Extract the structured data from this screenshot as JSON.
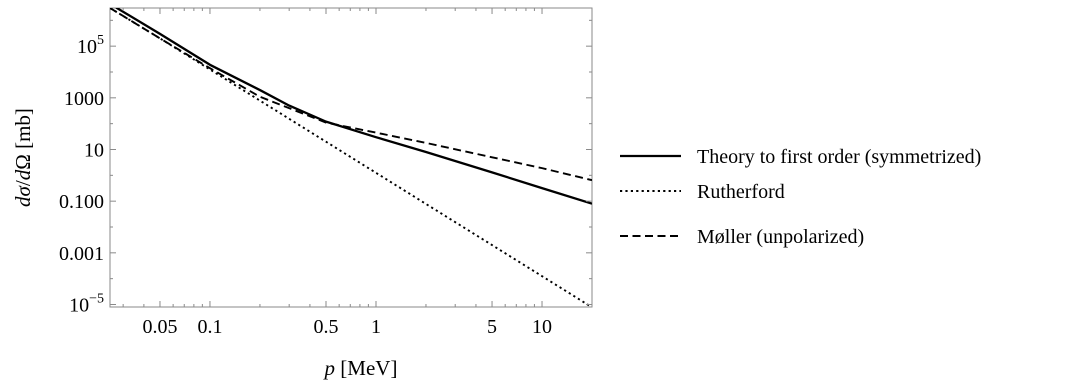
{
  "chart_data": {
    "type": "line",
    "title": "",
    "xlabel": "p [MeV]",
    "ylabel": "dσ/dΩ [mb]",
    "x_scale": "log",
    "y_scale": "log",
    "xlim": [
      0.025,
      20
    ],
    "ylim": [
      8e-06,
      3000000
    ],
    "grid": false,
    "legend_position": "right",
    "x_ticks": [
      {
        "value": 0.05,
        "label": "0.05"
      },
      {
        "value": 0.1,
        "label": "0.1"
      },
      {
        "value": 0.5,
        "label": "0.5"
      },
      {
        "value": 1,
        "label": "1"
      },
      {
        "value": 5,
        "label": "5"
      },
      {
        "value": 10,
        "label": "10"
      }
    ],
    "y_ticks": [
      {
        "value": 1e-05,
        "label": "10",
        "exp": "−5"
      },
      {
        "value": 0.001,
        "label": "0.001"
      },
      {
        "value": 0.1,
        "label": "0.100"
      },
      {
        "value": 10,
        "label": "10"
      },
      {
        "value": 1000,
        "label": "1000"
      },
      {
        "value": 100000,
        "label": "10",
        "exp": "5"
      }
    ],
    "series": [
      {
        "name": "Theory to first order (symmetrized)",
        "style": "solid",
        "x": [
          0.025,
          0.0275,
          0.05,
          0.1,
          0.2,
          0.3,
          0.5,
          1,
          2,
          5,
          10,
          20
        ],
        "y": [
          5200000,
          3000000,
          300000,
          19000,
          2000,
          500,
          120,
          30,
          8,
          1.3,
          0.32,
          0.08
        ]
      },
      {
        "name": "Rutherford",
        "style": "dotted",
        "x": [
          0.025,
          0.05,
          0.1,
          0.2,
          0.5,
          1,
          2,
          5,
          10,
          20
        ],
        "y": [
          3000000,
          200000,
          12500,
          780,
          20,
          1.25,
          0.078,
          0.002,
          0.000125,
          7.8e-06
        ]
      },
      {
        "name": "Møller (unpolarized)",
        "style": "dashed",
        "x": [
          0.025,
          0.05,
          0.1,
          0.2,
          0.5,
          1,
          2,
          5,
          10,
          20
        ],
        "y": [
          3000000,
          200000,
          14000,
          1100,
          110,
          45,
          18,
          5,
          1.9,
          0.65
        ]
      }
    ]
  }
}
